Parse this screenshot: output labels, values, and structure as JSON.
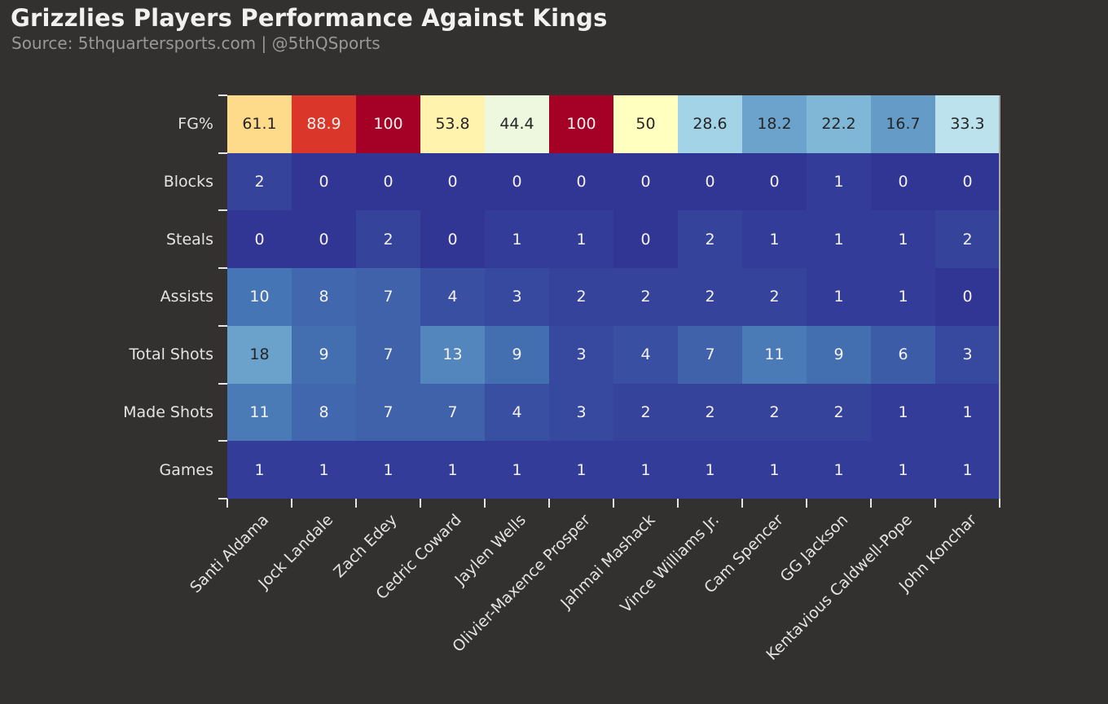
{
  "chart_data": {
    "type": "heatmap",
    "title": "Grizzlies Players Performance Against Kings",
    "subtitle": "Source: 5thquartersports.com | @5thQSports",
    "columns": [
      "Santi Aldama",
      "Jock Landale",
      "Zach Edey",
      "Cedric Coward",
      "Jaylen Wells",
      "Olivier-Maxence Prosper",
      "Jahmai Mashack",
      "Vince Williams Jr.",
      "Cam Spencer",
      "GG Jackson",
      "Kentavious Caldwell-Pope",
      "John Konchar"
    ],
    "rows": [
      {
        "label": "FG%",
        "values": [
          61.1,
          88.9,
          100,
          53.8,
          44.4,
          100,
          50,
          28.6,
          18.2,
          22.2,
          16.7,
          33.3
        ]
      },
      {
        "label": "Blocks",
        "values": [
          2,
          0,
          0,
          0,
          0,
          0,
          0,
          0,
          0,
          1,
          0,
          0
        ]
      },
      {
        "label": "Steals",
        "values": [
          0,
          0,
          2,
          0,
          1,
          1,
          0,
          2,
          1,
          1,
          1,
          2
        ]
      },
      {
        "label": "Assists",
        "values": [
          10,
          8,
          7,
          4,
          3,
          2,
          2,
          2,
          2,
          1,
          1,
          0
        ]
      },
      {
        "label": "Total Shots",
        "values": [
          18,
          9,
          7,
          13,
          9,
          3,
          4,
          7,
          11,
          9,
          6,
          3
        ]
      },
      {
        "label": "Made Shots",
        "values": [
          11,
          8,
          7,
          7,
          4,
          3,
          2,
          2,
          2,
          2,
          1,
          1
        ]
      },
      {
        "label": "Games",
        "values": [
          1,
          1,
          1,
          1,
          1,
          1,
          1,
          1,
          1,
          1,
          1,
          1
        ]
      }
    ],
    "colorscale": {
      "name": "RdYlBu_r",
      "domain": [
        0,
        100
      ],
      "anchors": [
        "#313695",
        "#4575B4",
        "#74ADD1",
        "#ABD9E9",
        "#E0F3F8",
        "#FFFFBF",
        "#FEE090",
        "#FDAE61",
        "#F46D43",
        "#D73027",
        "#A50026"
      ]
    },
    "colors": {
      "background": "#333130",
      "title": "#F3F1EF",
      "subtitle": "#9A9896",
      "axis_label": "#E5E3E1",
      "tick": "#E8E6E4",
      "right_spine": "#A9A7A5",
      "cell_text_dark": "#262626",
      "cell_text_light": "#F4F2F0"
    },
    "legend": "none",
    "grid": "off"
  }
}
